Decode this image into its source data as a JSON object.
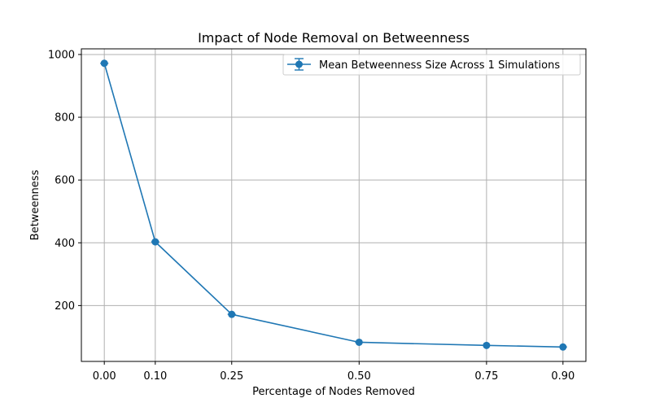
{
  "chart_data": {
    "type": "line",
    "title": "Impact of Node Removal on Betweenness",
    "xlabel": "Percentage of Nodes Removed",
    "ylabel": "Betweenness",
    "x_ticks": [
      "0.00",
      "0.10",
      "0.25",
      "0.50",
      "0.75",
      "0.90"
    ],
    "y_ticks": [
      "200",
      "400",
      "600",
      "800",
      "1000"
    ],
    "xlim": [
      -0.045,
      0.945
    ],
    "ylim": [
      22,
      1018
    ],
    "grid": true,
    "legend_position": "top-right",
    "series": [
      {
        "name": "Mean Betweenness Size Across 1 Simulations",
        "color": "#1f77b4",
        "marker": "circle",
        "error_bars": true,
        "x": [
          0.0,
          0.1,
          0.25,
          0.5,
          0.75,
          0.9
        ],
        "y": [
          972,
          403,
          172,
          83,
          73,
          68
        ]
      }
    ]
  }
}
